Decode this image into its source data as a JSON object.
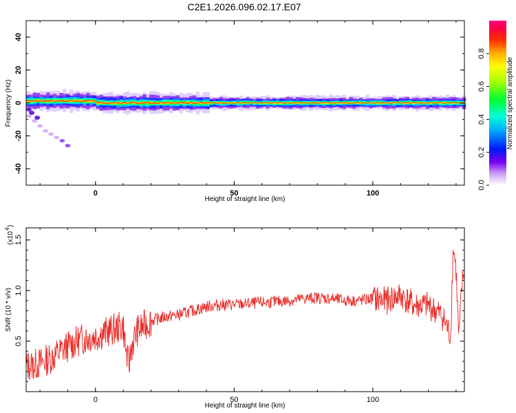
{
  "title": "C2E1.2026.096.02.17.E07",
  "chart_data": [
    {
      "type": "heatmap",
      "xlabel": "Height of straight line (km)",
      "ylabel": "Frequency (Hz)",
      "xlim": [
        -25,
        133
      ],
      "ylim": [
        -50,
        50
      ],
      "xticks": [
        0,
        50,
        100
      ],
      "yticks": [
        -40,
        -20,
        0,
        20,
        40
      ],
      "colorbar": {
        "label": "Normalized spectral amplitude",
        "range": [
          0,
          1
        ],
        "ticks": [
          "0.0",
          "0.2",
          "0.4",
          "0.6",
          "0.8"
        ],
        "tick_values": [
          0,
          0.2,
          0.4,
          0.6,
          0.8
        ],
        "colormap": "white-purple-blue-cyan-green-yellow-red-magenta"
      },
      "description_of_pattern": "Strong narrow band centered near 0 Hz across all heights; spread roughly -5 to +6 Hz; a weak feature descending from about -5 Hz to -26 Hz between -25 and -9 km"
    },
    {
      "type": "line",
      "xlabel": "Height of straight line (km)",
      "ylabel": "SNR (10 * v/v)",
      "yscale_label": "(x10",
      "yscale_exp": "4",
      "xlim": [
        -25,
        133
      ],
      "ylim": [
        0.0,
        1.62
      ],
      "xticks": [
        0,
        50,
        100
      ],
      "yticks": [
        "0.5",
        "1.0",
        "1.5"
      ],
      "ytick_values": [
        0.5,
        1.0,
        1.5
      ],
      "series": [
        {
          "color": "#e8302c",
          "x": [
            -25,
            -20,
            -15,
            -10,
            -5,
            0,
            5,
            10,
            11,
            12,
            13,
            15,
            20,
            25,
            30,
            35,
            40,
            45,
            50,
            55,
            60,
            65,
            70,
            75,
            80,
            85,
            90,
            95,
            100,
            105,
            110,
            115,
            120,
            125,
            128,
            129,
            130,
            131,
            132,
            133
          ],
          "values": [
            0.25,
            0.28,
            0.35,
            0.45,
            0.52,
            0.55,
            0.6,
            0.65,
            0.4,
            0.25,
            0.45,
            0.6,
            0.7,
            0.74,
            0.76,
            0.8,
            0.84,
            0.86,
            0.86,
            0.87,
            0.88,
            0.89,
            0.9,
            0.92,
            0.93,
            0.92,
            0.9,
            0.9,
            0.92,
            0.9,
            0.95,
            0.85,
            0.85,
            0.75,
            0.55,
            1.45,
            1.2,
            0.5,
            1.0,
            1.25
          ]
        }
      ]
    }
  ]
}
